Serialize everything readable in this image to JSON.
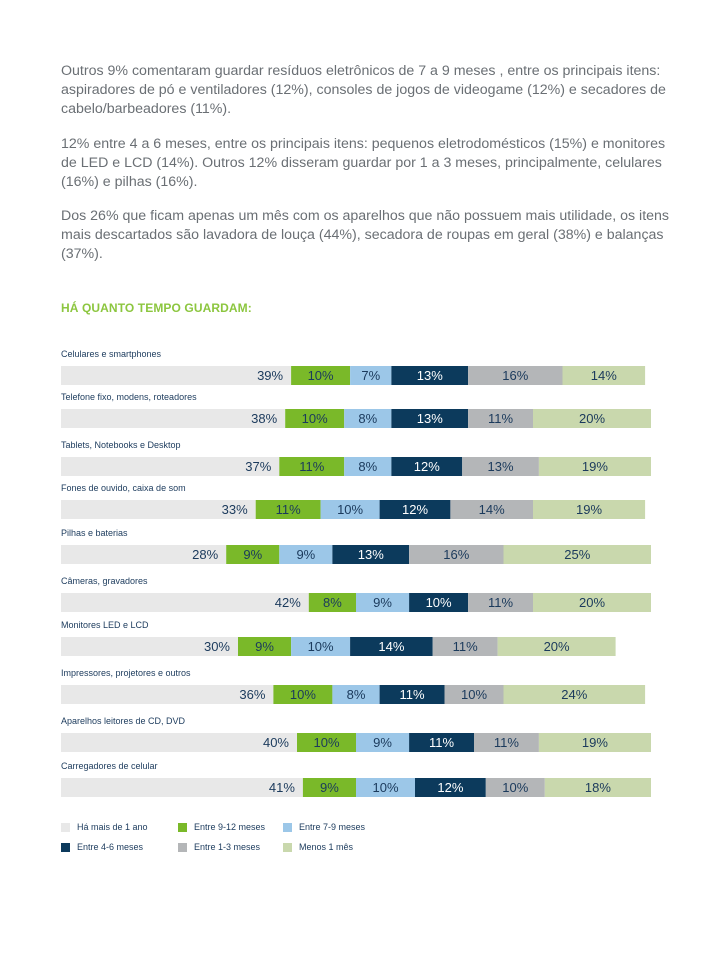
{
  "text": {
    "paragraphs": [
      "Outros 9% comentaram guardar resíduos eletrônicos de 7 a 9 meses , entre os principais itens: aspiradores de pó e ventiladores (12%), consoles de jogos de videogame (12%) e secadores de cabelo/barbeadores (11%).",
      "12% entre 4 a 6 meses, entre os principais itens: pequenos eletrodomésticos (15%) e monitores de LED e LCD (14%). Outros 12% disseram guardar por 1 a 3 meses, principalmente, celulares (16%) e pilhas (16%).",
      "Dos 26% que ficam apenas um mês com os aparelhos que não possuem mais utilidade, os itens mais descartados são lavadora de louça (44%), secadora de roupas em geral (38%) e balanças (37%)."
    ],
    "heading": "HÁ QUANTO TEMPO GUARDAM:"
  },
  "chart_data": {
    "type": "bar",
    "orientation": "horizontal-stacked",
    "title": "HÁ QUANTO TEMPO GUARDAM:",
    "categories": [
      "Celulares e smartphones",
      "Telefone fixo, modens, roteadores",
      "Tablets, Notebooks e Desktop",
      "Fones de ouvido, caixa de som",
      "Pilhas e baterias",
      "Câmeras, gravadores",
      "Monitores LED e LCD",
      "Impressores, projetores e outros",
      "Aparelhos leitores de CD, DVD",
      "Carregadores de celular"
    ],
    "series": [
      {
        "name": "Há mais de 1 ano",
        "color": "#e8e8e8",
        "label_color": "#1b3a5c",
        "values": [
          39,
          38,
          37,
          33,
          28,
          42,
          30,
          36,
          40,
          41
        ]
      },
      {
        "name": "Entre 9-12 meses",
        "color": "#7ab929",
        "label_color": "#1b3a5c",
        "values": [
          10,
          10,
          11,
          11,
          9,
          8,
          9,
          10,
          10,
          9
        ]
      },
      {
        "name": "Entre 7-9 meses",
        "color": "#9cc7e8",
        "label_color": "#1b3a5c",
        "values": [
          7,
          8,
          8,
          10,
          9,
          9,
          10,
          8,
          9,
          10
        ]
      },
      {
        "name": "Entre 4-6 meses",
        "color": "#0c3a5c",
        "label_color": "#ffffff",
        "values": [
          13,
          13,
          12,
          12,
          13,
          10,
          14,
          11,
          11,
          12
        ]
      },
      {
        "name": "Entre 1-3 meses",
        "color": "#b4b6b8",
        "label_color": "#1b3a5c",
        "values": [
          16,
          11,
          13,
          14,
          16,
          11,
          11,
          10,
          11,
          10
        ]
      },
      {
        "name": "Menos 1 mês",
        "color": "#c9d8ad",
        "label_color": "#1b3a5c",
        "values": [
          14,
          20,
          19,
          19,
          25,
          20,
          20,
          24,
          19,
          18
        ]
      }
    ],
    "value_suffix": "%",
    "legend_position": "bottom-left"
  }
}
